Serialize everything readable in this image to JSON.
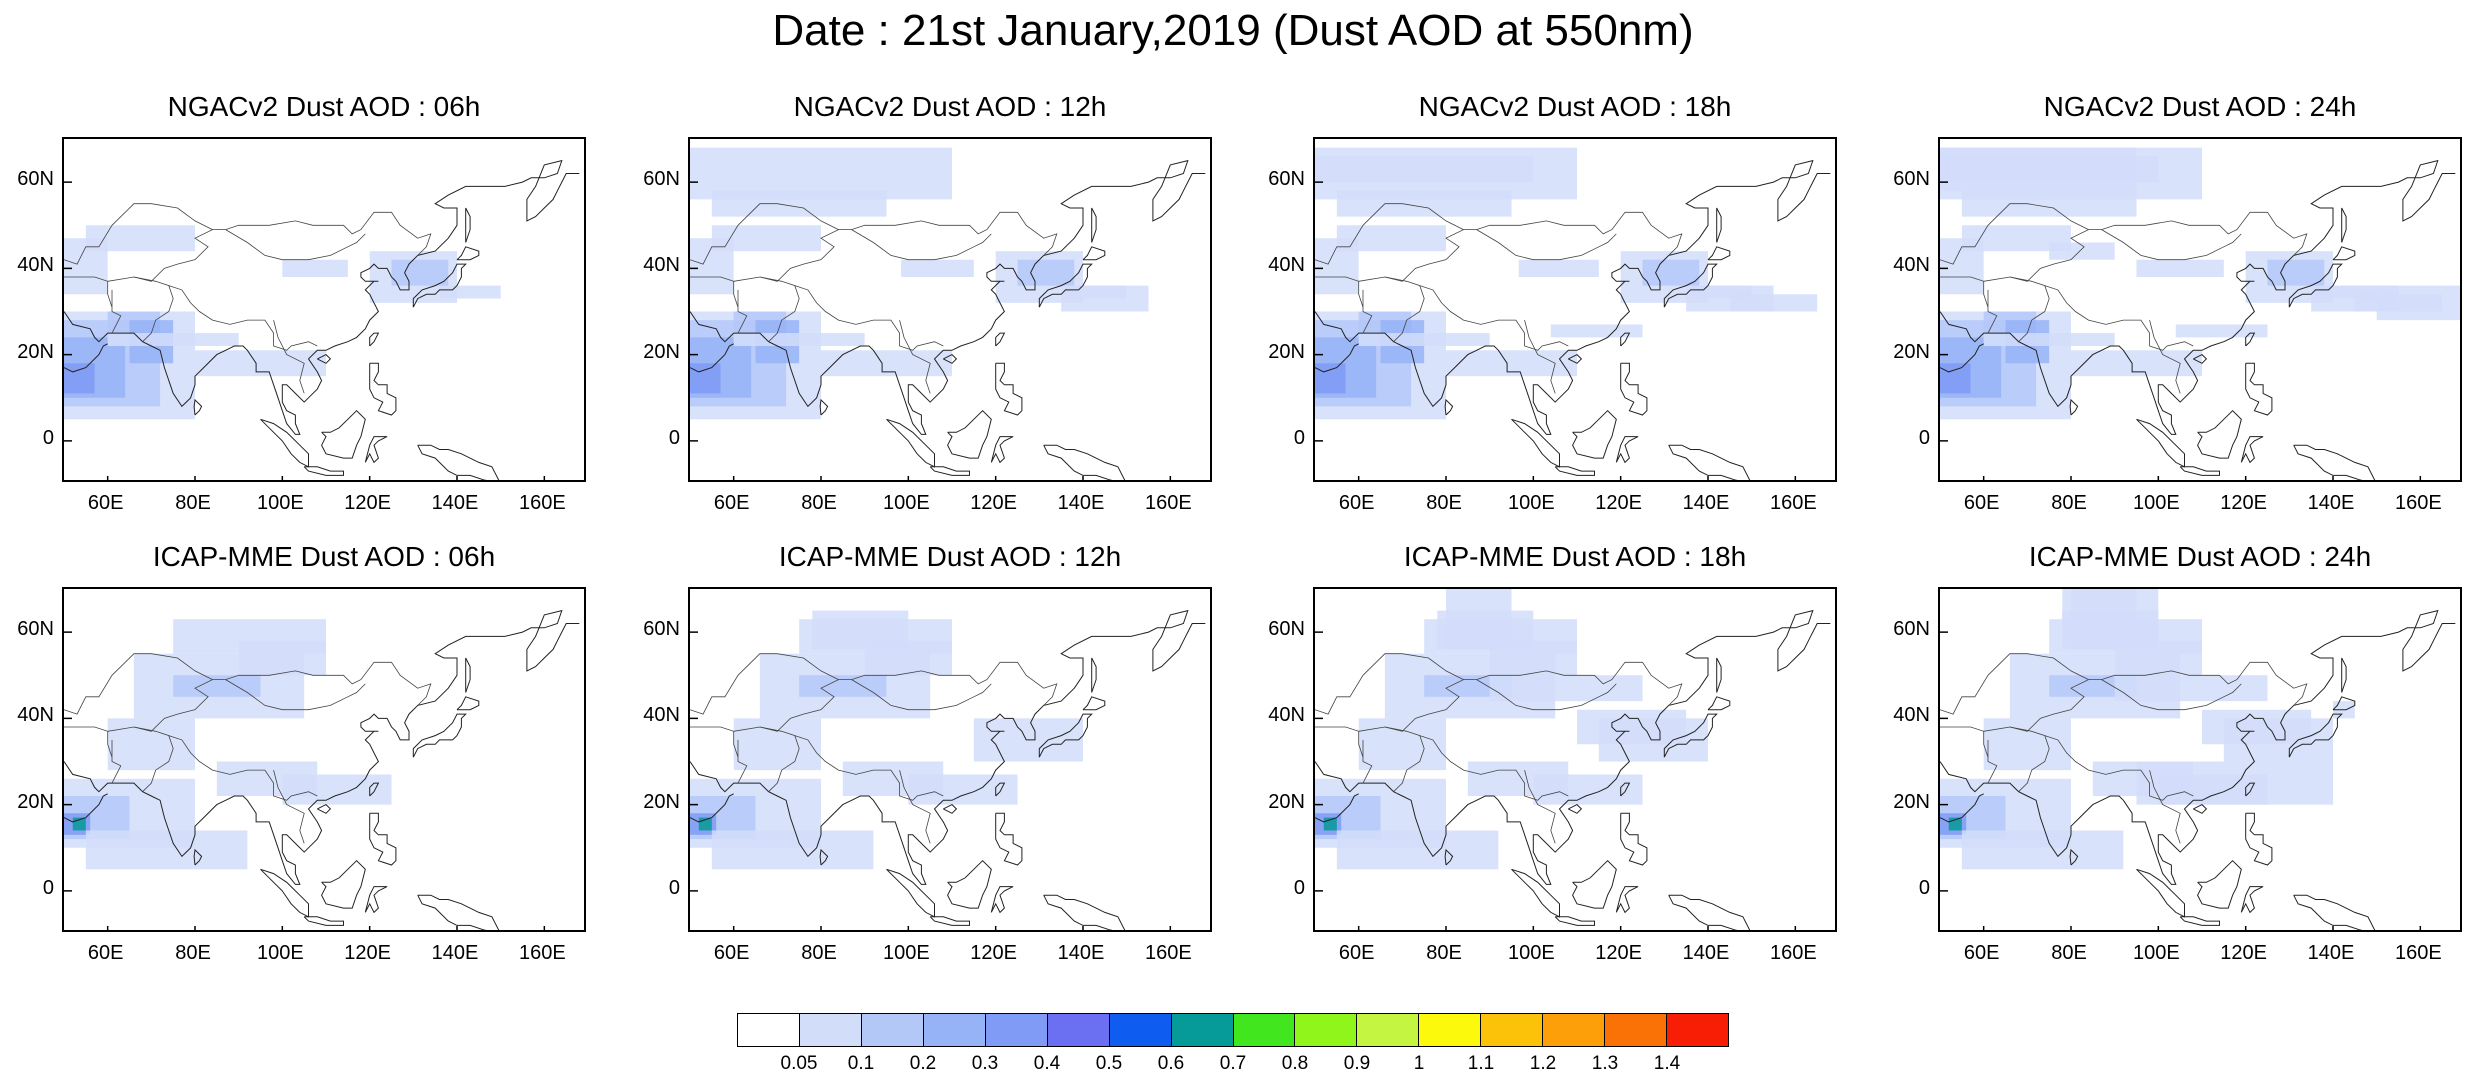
{
  "title": "Date : 21st January,2019 (Dust AOD at 550nm)",
  "panels": [
    {
      "title": "NGACv2 Dust AOD : 06h",
      "model": "NGAC",
      "lead": 6
    },
    {
      "title": "NGACv2 Dust AOD : 12h",
      "model": "NGAC",
      "lead": 12
    },
    {
      "title": "NGACv2 Dust AOD : 18h",
      "model": "NGAC",
      "lead": 18
    },
    {
      "title": "NGACv2 Dust AOD : 24h",
      "model": "NGAC",
      "lead": 24
    },
    {
      "title": "ICAP-MME Dust AOD : 06h",
      "model": "ICAP",
      "lead": 6
    },
    {
      "title": "ICAP-MME Dust AOD : 12h",
      "model": "ICAP",
      "lead": 12
    },
    {
      "title": "ICAP-MME Dust AOD : 18h",
      "model": "ICAP",
      "lead": 18
    },
    {
      "title": "ICAP-MME Dust AOD : 24h",
      "model": "ICAP",
      "lead": 24
    }
  ],
  "map_extent": {
    "lon_min": 50,
    "lon_max": 170,
    "lat_min": -10,
    "lat_max": 70
  },
  "lat_ticks": [
    "60N",
    "40N",
    "20N",
    "0"
  ],
  "lon_ticks": [
    "60E",
    "80E",
    "100E",
    "120E",
    "140E",
    "160E"
  ],
  "colorbar": {
    "labels": [
      "0.05",
      "0.1",
      "0.2",
      "0.3",
      "0.4",
      "0.5",
      "0.6",
      "0.7",
      "0.8",
      "0.9",
      "1",
      "1.1",
      "1.2",
      "1.3",
      "1.4"
    ],
    "colors": [
      "#ffffff",
      "#d2ddfa",
      "#b4c8f8",
      "#97b3f7",
      "#7f9bf5",
      "#6b6ff2",
      "#0f5cf0",
      "#069a98",
      "#41e61e",
      "#8ff51a",
      "#c4f541",
      "#fcf90c",
      "#fcc20a",
      "#fc9f08",
      "#fa7206",
      "#f81e06"
    ]
  }
}
